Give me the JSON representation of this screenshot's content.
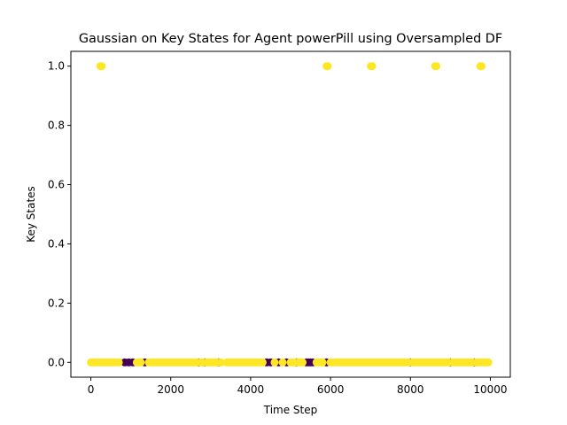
{
  "chart_data": {
    "type": "scatter",
    "title": "Gaussian on Key States for Agent powerPill using Oversampled DF",
    "xlabel": "Time Step",
    "ylabel": "Key States",
    "xlim": [
      -500,
      10500
    ],
    "ylim": [
      -0.05,
      1.05
    ],
    "xticks": [
      0,
      2000,
      4000,
      6000,
      8000,
      10000
    ],
    "xtick_labels": [
      "0",
      "2000",
      "4000",
      "6000",
      "8000",
      "10000"
    ],
    "yticks": [
      0.0,
      0.2,
      0.4,
      0.6,
      0.8,
      1.0
    ],
    "ytick_labels": [
      "0.0",
      "0.2",
      "0.4",
      "0.6",
      "0.8",
      "1.0"
    ],
    "grid": false,
    "legend": "none",
    "colors": {
      "class_0": "#440154",
      "class_1": "#fde725"
    },
    "series": [
      {
        "class": 1,
        "points": [
          [
            240,
            1
          ],
          [
            270,
            1
          ],
          [
            5900,
            1
          ],
          [
            5930,
            1
          ],
          [
            7010,
            1
          ],
          [
            7040,
            1
          ],
          [
            8620,
            1
          ],
          [
            8650,
            1
          ],
          [
            9750,
            1
          ],
          [
            9780,
            1
          ]
        ]
      },
      {
        "class": 0,
        "points": [
          [
            850,
            0
          ],
          [
            950,
            0
          ],
          [
            1050,
            0
          ],
          [
            1350,
            0
          ],
          [
            2700,
            0
          ],
          [
            2850,
            0
          ],
          [
            3200,
            0
          ],
          [
            4400,
            0
          ],
          [
            4500,
            0
          ],
          [
            4700,
            0
          ],
          [
            4900,
            0
          ],
          [
            5150,
            0
          ],
          [
            5400,
            0
          ],
          [
            5450,
            0
          ],
          [
            5500,
            0
          ],
          [
            5550,
            0
          ],
          [
            5900,
            0
          ],
          [
            8000,
            0
          ],
          [
            9000,
            0
          ],
          [
            9600,
            0
          ]
        ]
      },
      {
        "class": 1,
        "points": [
          [
            0,
            0
          ],
          [
            50,
            0
          ],
          [
            100,
            0
          ],
          [
            150,
            0
          ],
          [
            200,
            0
          ],
          [
            250,
            0
          ],
          [
            300,
            0
          ],
          [
            350,
            0
          ],
          [
            400,
            0
          ],
          [
            450,
            0
          ],
          [
            500,
            0
          ],
          [
            560,
            0
          ],
          [
            620,
            0
          ],
          [
            700,
            0
          ],
          [
            1150,
            0
          ],
          [
            1200,
            0
          ],
          [
            1250,
            0
          ],
          [
            1450,
            0
          ],
          [
            1500,
            0
          ],
          [
            1550,
            0
          ],
          [
            1600,
            0
          ],
          [
            1650,
            0
          ],
          [
            1700,
            0
          ],
          [
            1750,
            0
          ],
          [
            1800,
            0
          ],
          [
            1850,
            0
          ],
          [
            1900,
            0
          ],
          [
            1950,
            0
          ],
          [
            2000,
            0
          ],
          [
            2050,
            0
          ],
          [
            2100,
            0
          ],
          [
            2150,
            0
          ],
          [
            2200,
            0
          ],
          [
            2250,
            0
          ],
          [
            2300,
            0
          ],
          [
            2350,
            0
          ],
          [
            2400,
            0
          ],
          [
            2450,
            0
          ],
          [
            2500,
            0
          ],
          [
            2550,
            0
          ],
          [
            2600,
            0
          ],
          [
            2650,
            0
          ],
          [
            2750,
            0
          ],
          [
            2800,
            0
          ],
          [
            2900,
            0
          ],
          [
            2950,
            0
          ],
          [
            3000,
            0
          ],
          [
            3050,
            0
          ],
          [
            3100,
            0
          ],
          [
            3150,
            0
          ],
          [
            3250,
            0
          ],
          [
            3400,
            0
          ],
          [
            3450,
            0
          ],
          [
            3500,
            0
          ],
          [
            3550,
            0
          ],
          [
            3600,
            0
          ],
          [
            3650,
            0
          ],
          [
            3700,
            0
          ],
          [
            3750,
            0
          ],
          [
            3800,
            0
          ],
          [
            3850,
            0
          ],
          [
            3900,
            0
          ],
          [
            3950,
            0
          ],
          [
            4000,
            0
          ],
          [
            4050,
            0
          ],
          [
            4100,
            0
          ],
          [
            4150,
            0
          ],
          [
            4200,
            0
          ],
          [
            4250,
            0
          ],
          [
            4300,
            0
          ],
          [
            4600,
            0
          ],
          [
            4800,
            0
          ],
          [
            5000,
            0
          ],
          [
            5050,
            0
          ],
          [
            5100,
            0
          ],
          [
            5200,
            0
          ],
          [
            5250,
            0
          ],
          [
            5300,
            0
          ],
          [
            5650,
            0
          ],
          [
            5700,
            0
          ],
          [
            5750,
            0
          ],
          [
            5800,
            0
          ],
          [
            6000,
            0
          ],
          [
            6050,
            0
          ],
          [
            6100,
            0
          ],
          [
            6150,
            0
          ],
          [
            6200,
            0
          ],
          [
            6250,
            0
          ],
          [
            6300,
            0
          ],
          [
            6350,
            0
          ],
          [
            6400,
            0
          ],
          [
            6450,
            0
          ],
          [
            6500,
            0
          ],
          [
            6550,
            0
          ],
          [
            6600,
            0
          ],
          [
            6650,
            0
          ],
          [
            6700,
            0
          ],
          [
            6750,
            0
          ],
          [
            6800,
            0
          ],
          [
            6850,
            0
          ],
          [
            6900,
            0
          ],
          [
            6950,
            0
          ],
          [
            7000,
            0
          ],
          [
            7050,
            0
          ],
          [
            7100,
            0
          ],
          [
            7150,
            0
          ],
          [
            7200,
            0
          ],
          [
            7250,
            0
          ],
          [
            7300,
            0
          ],
          [
            7350,
            0
          ],
          [
            7400,
            0
          ],
          [
            7450,
            0
          ],
          [
            7500,
            0
          ],
          [
            7550,
            0
          ],
          [
            7600,
            0
          ],
          [
            7650,
            0
          ],
          [
            7700,
            0
          ],
          [
            7750,
            0
          ],
          [
            7800,
            0
          ],
          [
            7850,
            0
          ],
          [
            7900,
            0
          ],
          [
            7950,
            0
          ],
          [
            8050,
            0
          ],
          [
            8100,
            0
          ],
          [
            8150,
            0
          ],
          [
            8200,
            0
          ],
          [
            8250,
            0
          ],
          [
            8300,
            0
          ],
          [
            8350,
            0
          ],
          [
            8400,
            0
          ],
          [
            8450,
            0
          ],
          [
            8500,
            0
          ],
          [
            8550,
            0
          ],
          [
            8600,
            0
          ],
          [
            8650,
            0
          ],
          [
            8700,
            0
          ],
          [
            8750,
            0
          ],
          [
            8800,
            0
          ],
          [
            8850,
            0
          ],
          [
            8900,
            0
          ],
          [
            8950,
            0
          ],
          [
            9050,
            0
          ],
          [
            9100,
            0
          ],
          [
            9150,
            0
          ],
          [
            9200,
            0
          ],
          [
            9250,
            0
          ],
          [
            9300,
            0
          ],
          [
            9350,
            0
          ],
          [
            9400,
            0
          ],
          [
            9450,
            0
          ],
          [
            9500,
            0
          ],
          [
            9550,
            0
          ],
          [
            9650,
            0
          ],
          [
            9700,
            0
          ],
          [
            9750,
            0
          ],
          [
            9800,
            0
          ],
          [
            9850,
            0
          ],
          [
            9900,
            0
          ],
          [
            9950,
            0
          ]
        ]
      }
    ]
  }
}
